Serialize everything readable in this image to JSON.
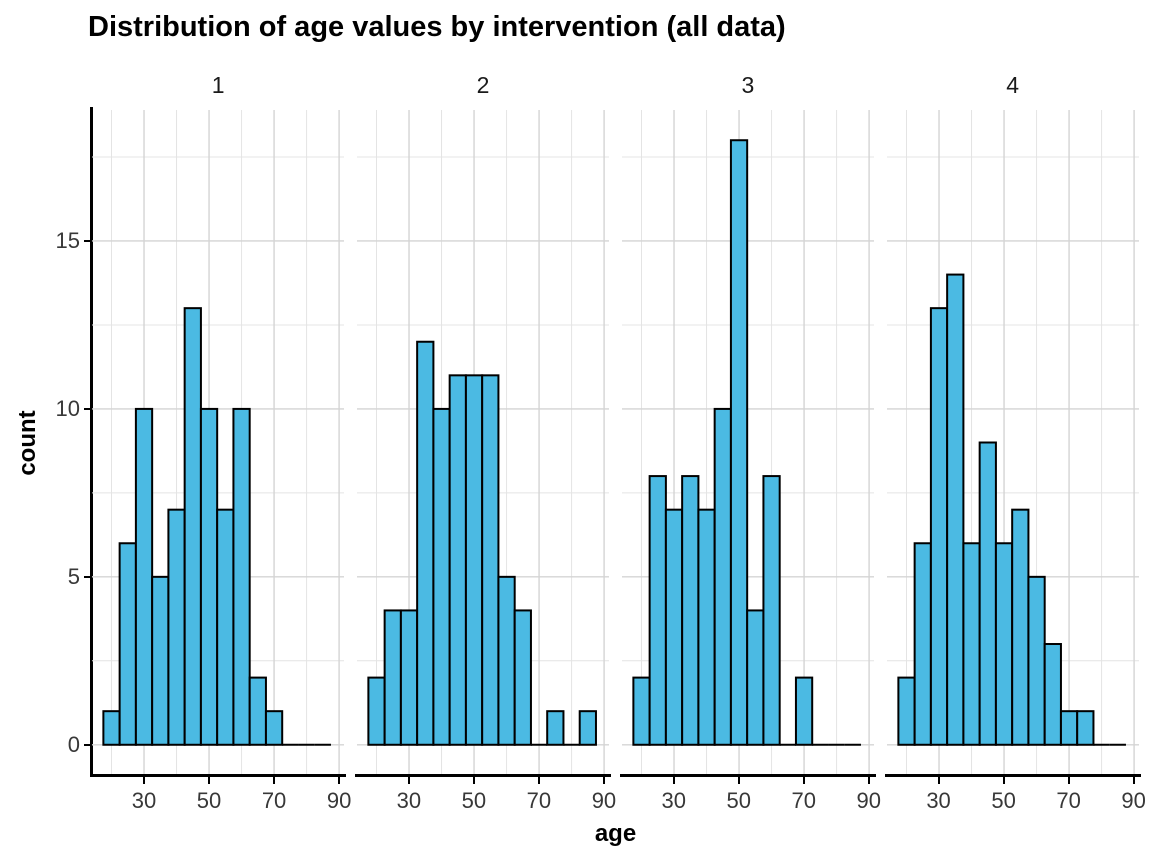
{
  "title": "Distribution of age values by intervention (all data)",
  "colors": {
    "background": "#FFFFFF",
    "bar_fill": "#4BBAE3",
    "bar_stroke": "#000000",
    "grid_major": "#D4D4D4",
    "grid_minor": "#E4E4E4",
    "axis_line": "#000000",
    "tick_label": "#383838",
    "title_text": "#000000"
  },
  "chart_data": {
    "type": "bar",
    "chart_kind": "faceted_histogram",
    "title": "Distribution of age values by intervention (all data)",
    "xlabel": "age",
    "ylabel": "count",
    "facet_labels": [
      "1",
      "2",
      "3",
      "4"
    ],
    "bin_width": 5,
    "bin_centers": [
      20,
      25,
      30,
      35,
      40,
      45,
      50,
      55,
      60,
      65,
      70,
      75,
      80,
      85
    ],
    "series": [
      {
        "name": "1",
        "values": [
          1,
          6,
          10,
          5,
          7,
          13,
          10,
          7,
          10,
          2,
          1,
          0,
          0,
          0
        ]
      },
      {
        "name": "2",
        "values": [
          2,
          4,
          4,
          12,
          10,
          11,
          11,
          11,
          5,
          4,
          0,
          1,
          0,
          1
        ]
      },
      {
        "name": "3",
        "values": [
          2,
          8,
          7,
          8,
          7,
          10,
          18,
          4,
          8,
          0,
          2,
          0,
          0,
          0
        ]
      },
      {
        "name": "4",
        "values": [
          2,
          6,
          13,
          14,
          6,
          9,
          6,
          7,
          5,
          3,
          1,
          1,
          0,
          0
        ]
      }
    ],
    "x_ticks": [
      30,
      50,
      70,
      90
    ],
    "x_minor_gridlines": [
      20,
      40,
      60,
      80
    ],
    "y_ticks": [
      0,
      5,
      10,
      15
    ],
    "y_minor_gridlines": [
      2.5,
      7.5,
      12.5,
      17.5
    ],
    "xlim": [
      14,
      91.6
    ],
    "ylim": [
      -0.9,
      18.9
    ],
    "grid": true,
    "legend": "none"
  }
}
